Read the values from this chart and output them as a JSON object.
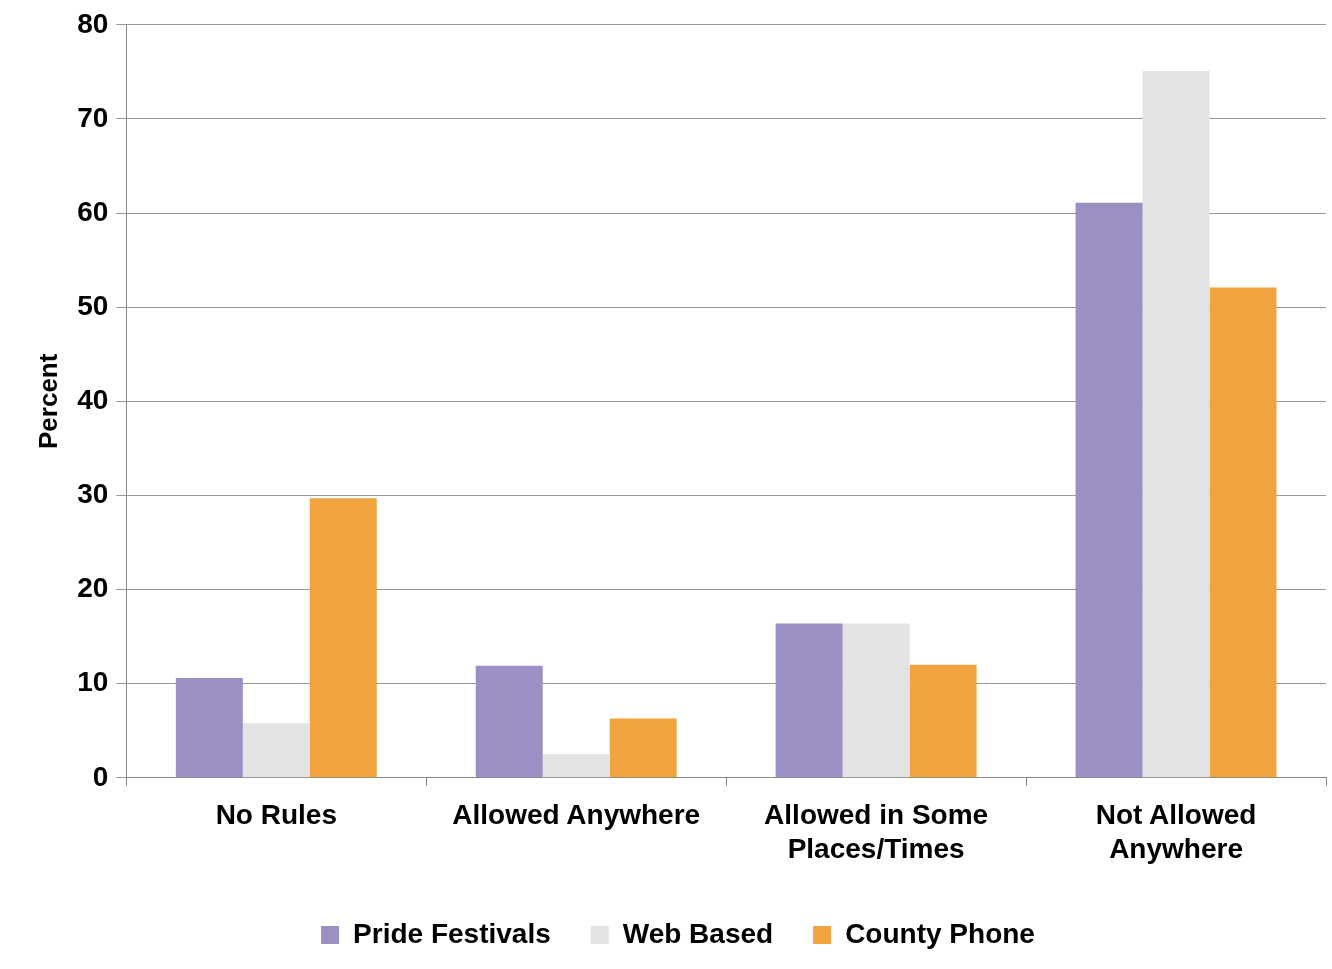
{
  "chart_data": {
    "type": "bar",
    "ylabel": "Percent",
    "categories": [
      "No Rules",
      "Allowed Anywhere",
      "Allowed in Some Places/Times",
      "Not Allowed Anywhere"
    ],
    "series": [
      {
        "name": "Pride Festivals",
        "color": "#9b8fc4",
        "values": [
          10.6,
          11.9,
          16.4,
          61.1
        ]
      },
      {
        "name": "Web Based",
        "color": "#e3e3e3",
        "values": [
          5.8,
          2.5,
          16.4,
          75.1
        ]
      },
      {
        "name": "County Phone",
        "color": "#f0a440",
        "values": [
          29.7,
          6.3,
          12.0,
          52.1
        ]
      }
    ],
    "ylim": [
      0,
      80
    ],
    "yticks": [
      0,
      10,
      20,
      30,
      40,
      50,
      60,
      70,
      80
    ],
    "grid": "y",
    "legend": "bottom"
  }
}
